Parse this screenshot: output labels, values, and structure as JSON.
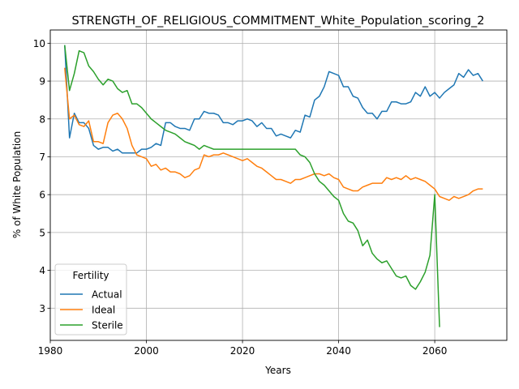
{
  "chart_data": {
    "type": "line",
    "title": "STRENGTH_OF_RELIGIOUS_COMMITMENT_White_Population_scoring_2",
    "xlabel": "Years",
    "ylabel": "% of White Population",
    "xlim": [
      1980,
      2075
    ],
    "ylim": [
      2.15,
      10.35
    ],
    "xticks": [
      1980,
      2000,
      2020,
      2040,
      2060
    ],
    "yticks": [
      3,
      4,
      5,
      6,
      7,
      8,
      9,
      10
    ],
    "grid": true,
    "legend": {
      "title": "Fertility",
      "placement": "lower-left"
    },
    "series": [
      {
        "name": "Actual",
        "color": "#1f77b4",
        "x": [
          1983,
          1984,
          1985,
          1986,
          1987,
          1988,
          1989,
          1990,
          1991,
          1992,
          1993,
          1994,
          1995,
          1996,
          1997,
          1998,
          1999,
          2000,
          2001,
          2002,
          2003,
          2004,
          2005,
          2006,
          2007,
          2008,
          2009,
          2010,
          2011,
          2012,
          2013,
          2014,
          2015,
          2016,
          2017,
          2018,
          2019,
          2020,
          2021,
          2022,
          2023,
          2024,
          2025,
          2026,
          2027,
          2028,
          2029,
          2030,
          2031,
          2032,
          2033,
          2034,
          2035,
          2036,
          2037,
          2038,
          2039,
          2040,
          2041,
          2042,
          2043,
          2044,
          2045,
          2046,
          2047,
          2048,
          2049,
          2050,
          2051,
          2052,
          2053,
          2054,
          2055,
          2056,
          2057,
          2058,
          2059,
          2060,
          2061,
          2062,
          2063,
          2064,
          2065,
          2066,
          2067,
          2068,
          2069,
          2070
        ],
        "y": [
          9.95,
          7.5,
          8.15,
          7.9,
          7.9,
          7.75,
          7.3,
          7.2,
          7.25,
          7.25,
          7.15,
          7.2,
          7.1,
          7.1,
          7.1,
          7.1,
          7.2,
          7.2,
          7.25,
          7.35,
          7.3,
          7.9,
          7.9,
          7.8,
          7.75,
          7.75,
          7.7,
          8.0,
          8.0,
          8.2,
          8.15,
          8.15,
          8.1,
          7.9,
          7.9,
          7.85,
          7.95,
          7.95,
          8.0,
          7.95,
          7.8,
          7.9,
          7.75,
          7.75,
          7.55,
          7.6,
          7.55,
          7.5,
          7.7,
          7.65,
          8.1,
          8.05,
          8.5,
          8.6,
          8.85,
          9.25,
          9.2,
          9.15,
          8.85,
          8.85,
          8.6,
          8.55,
          8.3,
          8.15,
          8.15,
          8.0,
          8.2,
          8.2,
          8.45,
          8.45,
          8.4,
          8.4,
          8.45,
          8.7,
          8.6,
          8.85,
          8.6,
          8.7,
          8.55,
          8.7,
          8.8,
          8.9,
          9.2,
          9.1,
          9.3,
          9.15,
          9.2,
          9.0
        ]
      },
      {
        "name": "Ideal",
        "color": "#ff7f0e",
        "x": [
          1983,
          1984,
          1985,
          1986,
          1987,
          1988,
          1989,
          1990,
          1991,
          1992,
          1993,
          1994,
          1995,
          1996,
          1997,
          1998,
          1999,
          2000,
          2001,
          2002,
          2003,
          2004,
          2005,
          2006,
          2007,
          2008,
          2009,
          2010,
          2011,
          2012,
          2013,
          2014,
          2015,
          2016,
          2017,
          2018,
          2019,
          2020,
          2021,
          2022,
          2023,
          2024,
          2025,
          2026,
          2027,
          2028,
          2029,
          2030,
          2031,
          2032,
          2033,
          2034,
          2035,
          2036,
          2037,
          2038,
          2039,
          2040,
          2041,
          2042,
          2043,
          2044,
          2045,
          2046,
          2047,
          2048,
          2049,
          2050,
          2051,
          2052,
          2053,
          2054,
          2055,
          2056,
          2057,
          2058,
          2059,
          2060,
          2061,
          2062,
          2063,
          2064,
          2065,
          2066,
          2067,
          2068,
          2069,
          2070
        ],
        "y": [
          9.35,
          8.0,
          8.1,
          7.85,
          7.8,
          7.95,
          7.4,
          7.4,
          7.35,
          7.9,
          8.1,
          8.15,
          8.0,
          7.75,
          7.3,
          7.05,
          7.0,
          6.95,
          6.75,
          6.8,
          6.65,
          6.7,
          6.6,
          6.6,
          6.55,
          6.45,
          6.5,
          6.65,
          6.7,
          7.05,
          7.0,
          7.05,
          7.05,
          7.1,
          7.05,
          7.0,
          6.95,
          6.9,
          6.95,
          6.85,
          6.75,
          6.7,
          6.6,
          6.5,
          6.4,
          6.4,
          6.35,
          6.3,
          6.4,
          6.4,
          6.45,
          6.5,
          6.55,
          6.55,
          6.5,
          6.55,
          6.45,
          6.4,
          6.2,
          6.15,
          6.1,
          6.1,
          6.2,
          6.25,
          6.3,
          6.3,
          6.3,
          6.45,
          6.4,
          6.45,
          6.4,
          6.5,
          6.4,
          6.45,
          6.4,
          6.35,
          6.25,
          6.15,
          5.95,
          5.9,
          5.85,
          5.95,
          5.9,
          5.95,
          6.0,
          6.1,
          6.15,
          6.15
        ]
      },
      {
        "name": "Sterile",
        "color": "#2ca02c",
        "x": [
          1983,
          1984,
          1985,
          1986,
          1987,
          1988,
          1989,
          1990,
          1991,
          1992,
          1993,
          1994,
          1995,
          1996,
          1997,
          1998,
          1999,
          2000,
          2001,
          2002,
          2003,
          2004,
          2005,
          2006,
          2007,
          2008,
          2009,
          2010,
          2011,
          2012,
          2013,
          2014,
          2015,
          2016,
          2017,
          2018,
          2019,
          2020,
          2021,
          2022,
          2023,
          2024,
          2025,
          2026,
          2027,
          2028,
          2029,
          2030,
          2031,
          2032,
          2033,
          2034,
          2035,
          2036,
          2037,
          2038,
          2039,
          2040,
          2041,
          2042,
          2043,
          2044,
          2045,
          2046,
          2047,
          2048,
          2049,
          2050,
          2051,
          2052,
          2053,
          2054,
          2055,
          2056,
          2057,
          2058,
          2059,
          2060,
          2061
        ],
        "y": [
          9.95,
          8.75,
          9.2,
          9.8,
          9.75,
          9.4,
          9.25,
          9.05,
          8.9,
          9.05,
          9.0,
          8.8,
          8.7,
          8.75,
          8.4,
          8.4,
          8.3,
          8.15,
          8.0,
          7.9,
          7.8,
          7.7,
          7.65,
          7.6,
          7.5,
          7.4,
          7.35,
          7.3,
          7.2,
          7.3,
          7.25,
          7.2,
          7.2,
          7.2,
          7.2,
          7.2,
          7.2,
          7.2,
          7.2,
          7.2,
          7.2,
          7.2,
          7.2,
          7.2,
          7.2,
          7.2,
          7.2,
          7.2,
          7.2,
          7.05,
          7.0,
          6.85,
          6.55,
          6.35,
          6.25,
          6.1,
          5.95,
          5.85,
          5.5,
          5.3,
          5.25,
          5.05,
          4.65,
          4.8,
          4.45,
          4.3,
          4.2,
          4.25,
          4.05,
          3.85,
          3.8,
          3.85,
          3.6,
          3.5,
          3.7,
          3.95,
          4.4,
          6.0,
          2.5
        ]
      }
    ]
  }
}
